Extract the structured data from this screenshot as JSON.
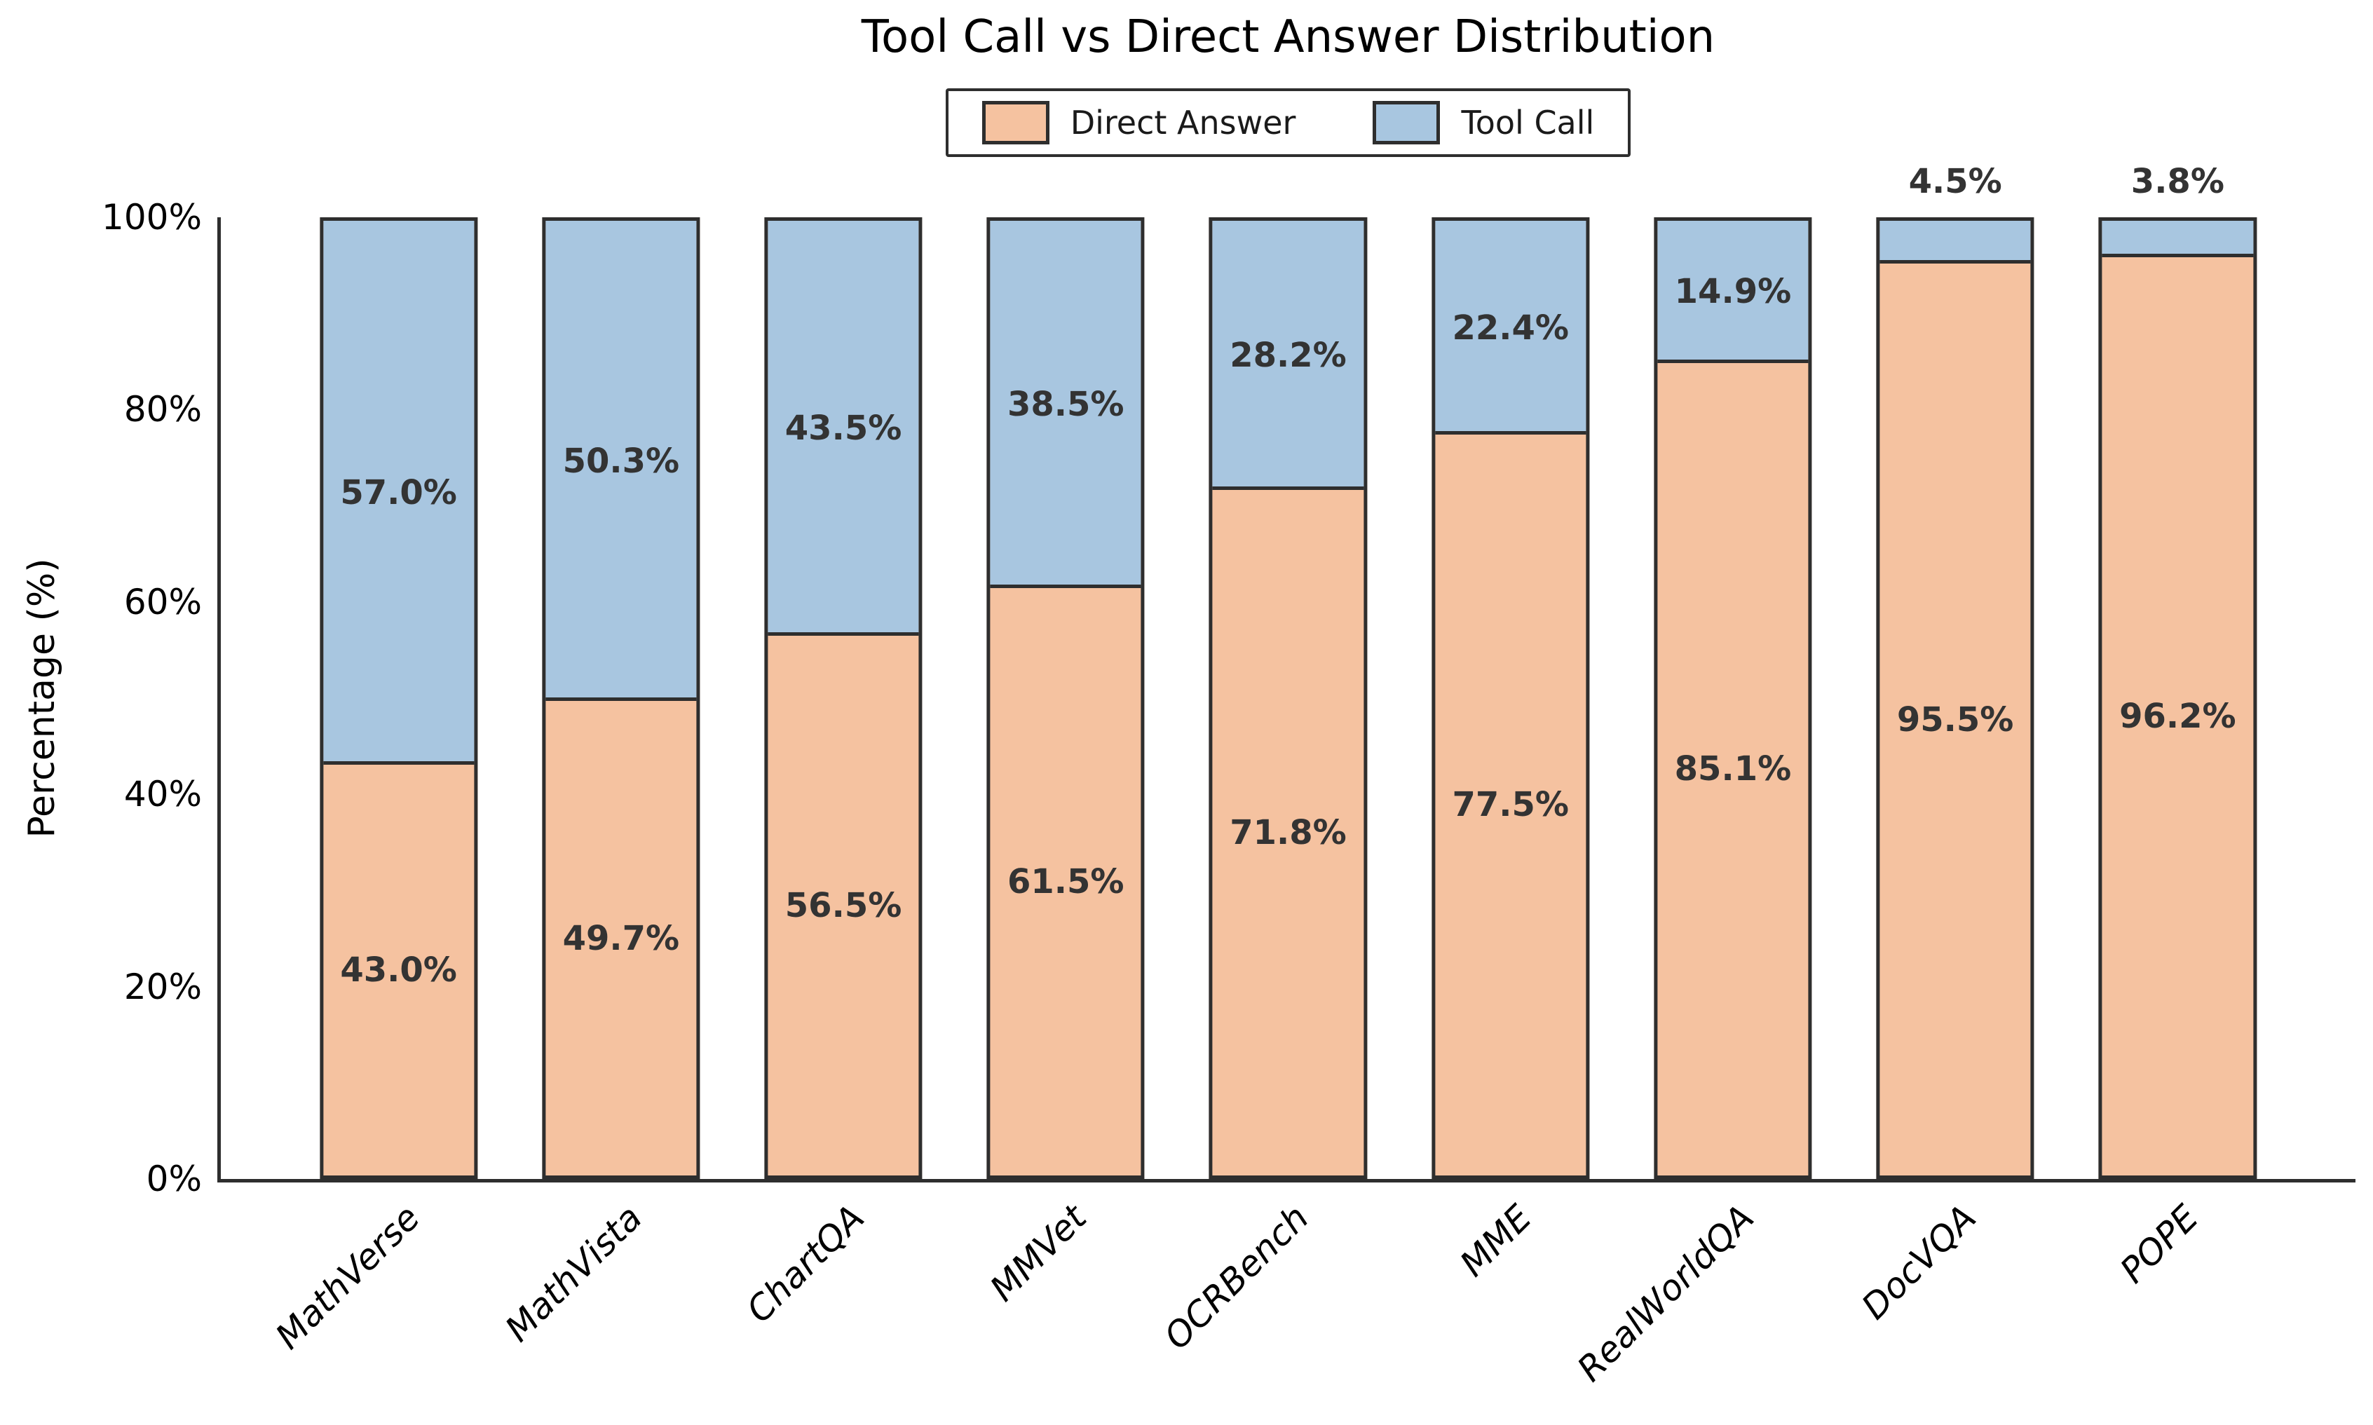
{
  "chart_data": {
    "type": "bar",
    "stacked": true,
    "title": "Tool Call vs Direct Answer Distribution",
    "ylabel": "Percentage (%)",
    "ylim": [
      0,
      100
    ],
    "ytick_labels": [
      "0%",
      "20%",
      "40%",
      "60%",
      "80%",
      "100%"
    ],
    "grid": false,
    "legend_position": "top-center",
    "categories": [
      "MathVerse",
      "MathVista",
      "ChartQA",
      "MMVet",
      "OCRBench",
      "MME",
      "RealWorldQA",
      "DocVQA",
      "POPE"
    ],
    "series": [
      {
        "name": "Direct Answer",
        "color": "#F5C2A0",
        "values": [
          43.0,
          49.7,
          56.5,
          61.5,
          71.8,
          77.5,
          85.1,
          95.5,
          96.2
        ],
        "labels": [
          "43.0%",
          "49.7%",
          "56.5%",
          "61.5%",
          "71.8%",
          "77.5%",
          "85.1%",
          "95.5%",
          "96.2%"
        ]
      },
      {
        "name": "Tool Call",
        "color": "#A8C6E0",
        "values": [
          57.0,
          50.3,
          43.5,
          38.5,
          28.2,
          22.4,
          14.9,
          4.5,
          3.8
        ],
        "labels": [
          "57.0%",
          "50.3%",
          "43.5%",
          "38.5%",
          "28.2%",
          "22.4%",
          "14.9%",
          "4.5%",
          "3.8%"
        ]
      }
    ],
    "label_placement": "segment-center",
    "outside_label_threshold": 6
  },
  "legend": {
    "items": [
      {
        "label": "Direct Answer",
        "color": "#F5C2A0"
      },
      {
        "label": "Tool Call",
        "color": "#A8C6E0"
      }
    ]
  },
  "styles": {
    "edge_color": "#2e2e2e",
    "bar_label_color": "#333333",
    "axis_text_color": "#000000"
  }
}
